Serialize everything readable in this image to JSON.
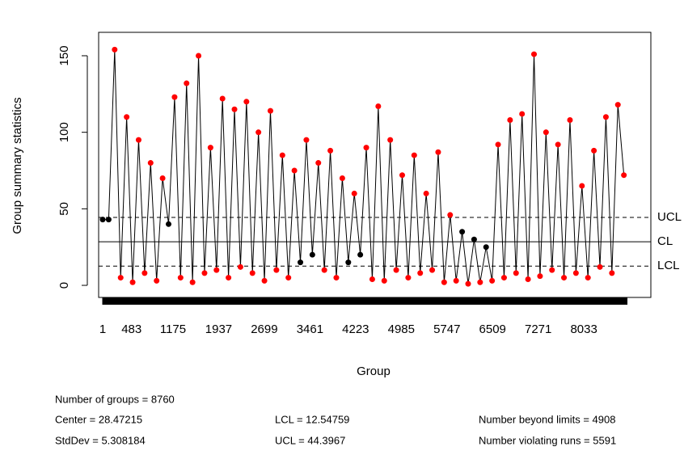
{
  "chart_data": {
    "type": "qcc",
    "ylabel": "Group summary statistics",
    "xlabel": "Group",
    "x": [
      1,
      101,
      201,
      301,
      401,
      501,
      601,
      701,
      801,
      901,
      1001,
      1101,
      1201,
      1301,
      1401,
      1501,
      1601,
      1701,
      1801,
      1901,
      2001,
      2101,
      2201,
      2301,
      2401,
      2501,
      2601,
      2701,
      2801,
      2901,
      3001,
      3101,
      3201,
      3301,
      3401,
      3501,
      3601,
      3701,
      3801,
      3901,
      4001,
      4101,
      4201,
      4301,
      4401,
      4501,
      4601,
      4701,
      4801,
      4901,
      5001,
      5101,
      5201,
      5301,
      5401,
      5501,
      5601,
      5701,
      5801,
      5901,
      6001,
      6101,
      6201,
      6301,
      6401,
      6501,
      6601,
      6701,
      6801,
      6901,
      7001,
      7101,
      7201,
      7301,
      7401,
      7501,
      7601,
      7701,
      7801,
      7901,
      8001,
      8101,
      8201,
      8301,
      8401,
      8501,
      8601,
      8701
    ],
    "values": [
      43,
      43,
      154,
      5,
      110,
      2,
      95,
      8,
      80,
      3,
      70,
      40,
      123,
      5,
      132,
      2,
      150,
      8,
      90,
      10,
      122,
      5,
      115,
      12,
      120,
      8,
      100,
      3,
      114,
      10,
      85,
      5,
      75,
      15,
      95,
      20,
      80,
      10,
      88,
      5,
      70,
      15,
      60,
      20,
      90,
      4,
      117,
      3,
      95,
      10,
      72,
      5,
      85,
      8,
      60,
      10,
      87,
      2,
      46,
      3,
      35,
      1,
      30,
      2,
      25,
      3,
      92,
      5,
      108,
      8,
      112,
      4,
      151,
      6,
      100,
      10,
      92,
      5,
      108,
      8,
      65,
      5,
      88,
      12,
      110,
      8,
      118,
      72
    ],
    "colors": {
      "in": "#000000",
      "out": "#ff0000"
    },
    "center": 28.47215,
    "lcl": 12.54759,
    "ucl": 44.3967,
    "limit_labels": {
      "ucl": "UCL",
      "center": "CL",
      "lcl": "LCL"
    },
    "xlim": [
      -66.5,
      9151
    ],
    "ylim": [
      -7.9,
      165.3
    ],
    "xticks": [
      1,
      483,
      1175,
      1937,
      2699,
      3461,
      4223,
      4985,
      5747,
      6509,
      7271,
      8033
    ],
    "yticks": [
      0,
      50,
      100,
      150
    ],
    "stats": [
      [
        "Number of groups = 8760"
      ],
      [
        "Center = 28.47215",
        "LCL = 12.54759",
        "Number beyond limits = 4908"
      ],
      [
        "StdDev = 5.308184",
        "UCL = 44.3967",
        "Number violating runs = 5591"
      ]
    ]
  }
}
